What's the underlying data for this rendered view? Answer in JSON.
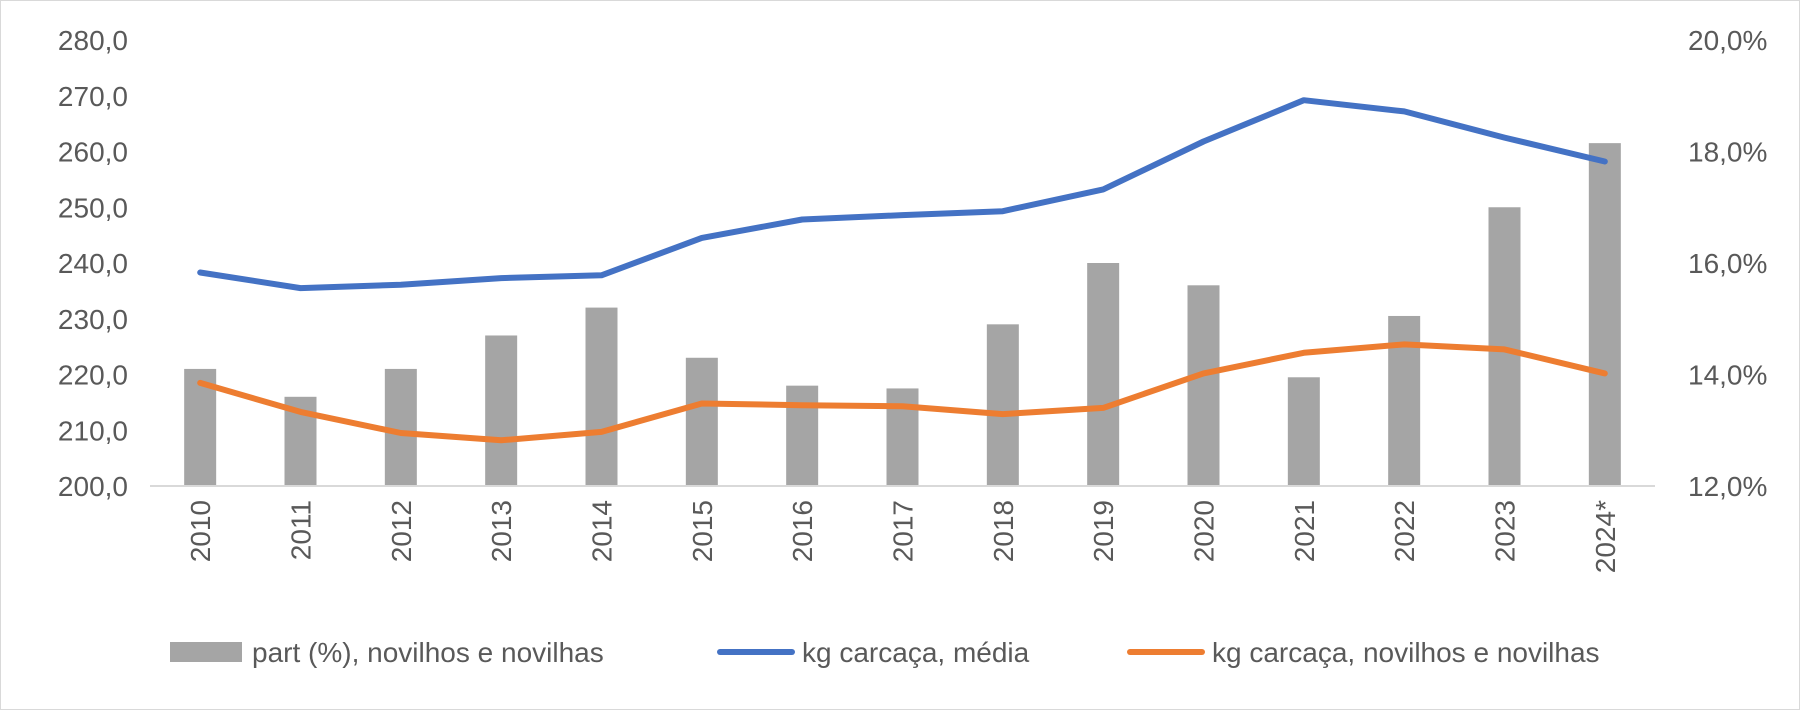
{
  "chart_data": {
    "type": "bar+line",
    "categories": [
      "2010",
      "2011",
      "2012",
      "2013",
      "2014",
      "2015",
      "2016",
      "2017",
      "2018",
      "2019",
      "2020",
      "2021",
      "2022",
      "2023",
      "2024*"
    ],
    "bar_series": {
      "name": "part (%), novilhos e novilhas",
      "axis": "right",
      "color": "#a5a5a5",
      "values": [
        14.1,
        13.6,
        14.1,
        14.7,
        15.2,
        14.3,
        13.8,
        13.75,
        14.9,
        16.0,
        15.6,
        13.95,
        15.05,
        17.0,
        18.15
      ]
    },
    "line_series": [
      {
        "name": "kg carcaça, média",
        "axis": "left",
        "color": "#4472c4",
        "values": [
          238.3,
          235.5,
          236.1,
          237.3,
          237.8,
          244.5,
          247.8,
          248.6,
          249.3,
          253.2,
          261.8,
          269.2,
          267.2,
          262.5,
          258.2
        ]
      },
      {
        "name": "kg carcaça, novilhos e novilhas",
        "axis": "left",
        "color": "#ed7d31",
        "values": [
          218.5,
          213.3,
          209.5,
          208.2,
          209.7,
          214.8,
          214.5,
          214.3,
          212.9,
          214.0,
          220.2,
          223.9,
          225.4,
          224.5,
          220.2
        ]
      }
    ],
    "y_left": {
      "min": 200,
      "max": 280,
      "step": 10,
      "ticks": [
        "200,0",
        "210,0",
        "220,0",
        "230,0",
        "240,0",
        "250,0",
        "260,0",
        "270,0",
        "280,0"
      ]
    },
    "y_right": {
      "min": 12,
      "max": 20,
      "step": 2,
      "ticks": [
        "12,0%",
        "14,0%",
        "16,0%",
        "18,0%",
        "20,0%"
      ]
    },
    "grid": false,
    "legend": "bottom",
    "legend_items": [
      {
        "label": "part (%), novilhos e novilhas",
        "kind": "bar",
        "color": "#a5a5a5"
      },
      {
        "label": "kg carcaça, média",
        "kind": "line",
        "color": "#4472c4"
      },
      {
        "label": "kg carcaça, novilhos e novilhas",
        "kind": "line",
        "color": "#ed7d31"
      }
    ],
    "title": "",
    "xlabel": "",
    "ylabel": ""
  }
}
